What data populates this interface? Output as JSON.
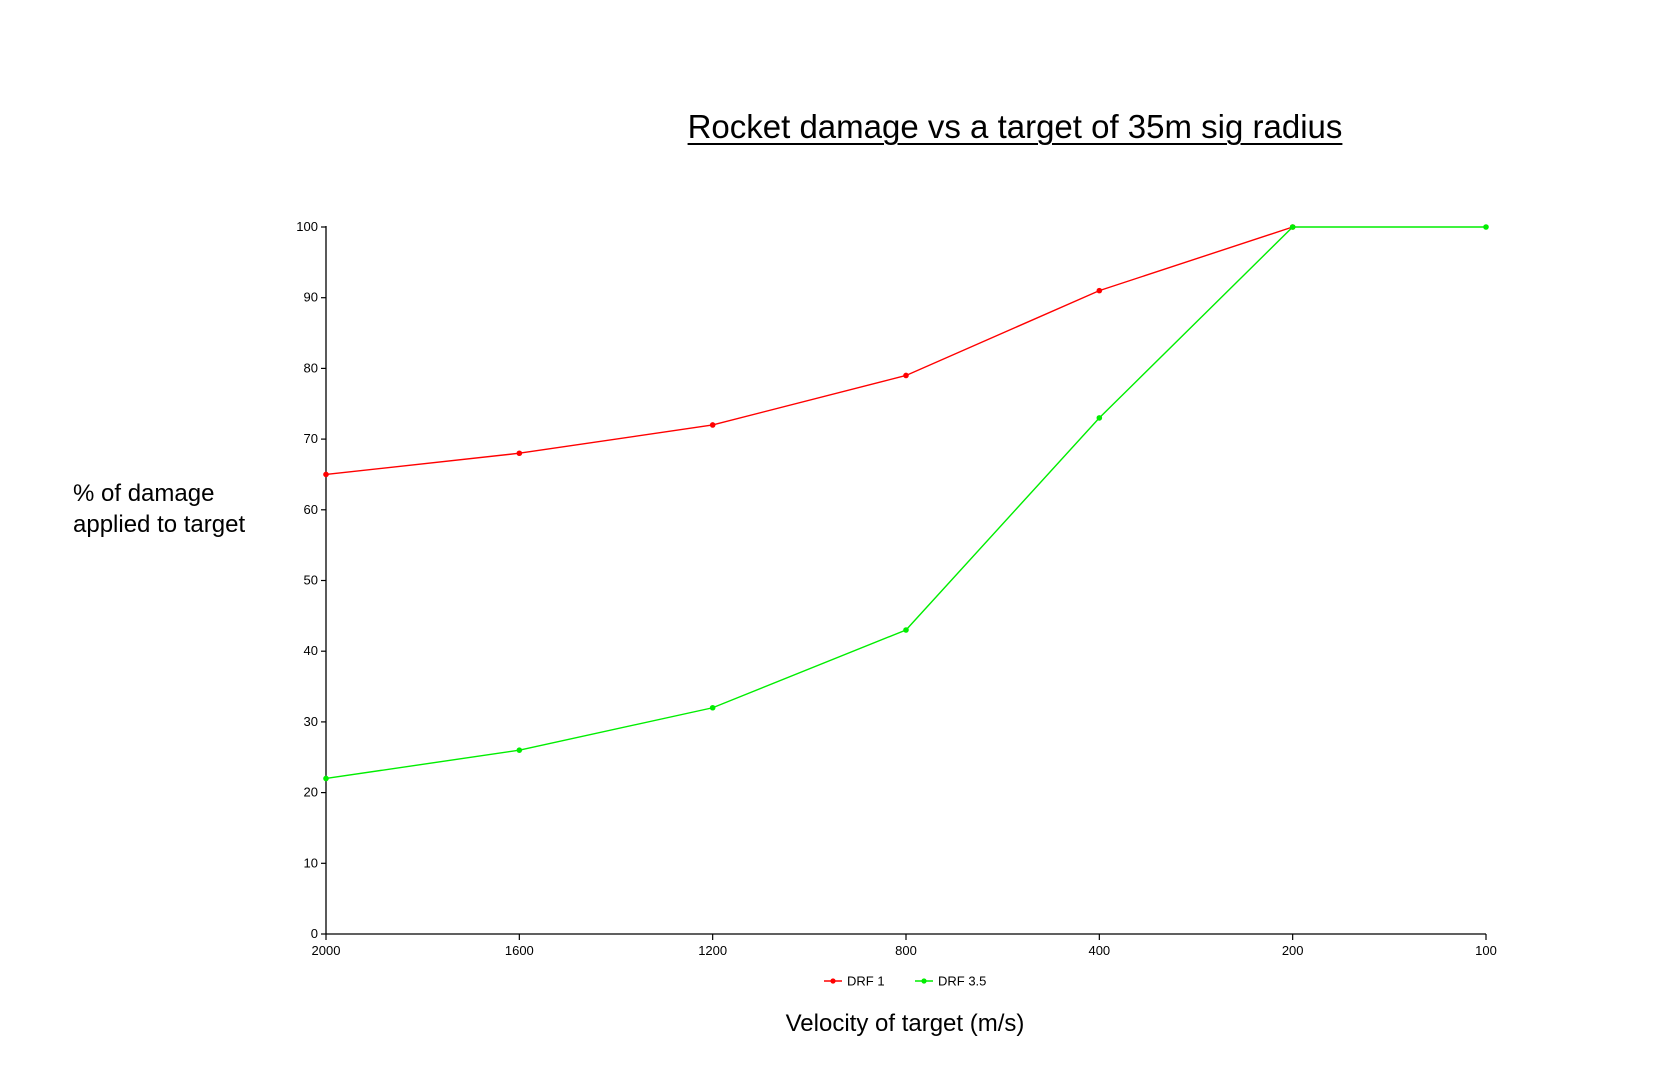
{
  "chart_data": {
    "type": "line",
    "title": "Rocket damage vs a target of 35m sig radius",
    "xlabel": "Velocity of target (m/s)",
    "ylabel_lines": [
      "% of damage",
      "applied to target"
    ],
    "categories": [
      "2000",
      "1600",
      "1200",
      "800",
      "400",
      "200",
      "100"
    ],
    "ylim": [
      0,
      100
    ],
    "yticks": [
      "0",
      "10",
      "20",
      "30",
      "40",
      "50",
      "60",
      "70",
      "80",
      "90",
      "100"
    ],
    "grid": false,
    "legend_position": "bottom",
    "series": [
      {
        "name": "DRF 1",
        "color": "#ff0000",
        "values": [
          65,
          68,
          72,
          79,
          91,
          100,
          null
        ]
      },
      {
        "name": "DRF 3.5",
        "color": "#00ee00",
        "values": [
          22,
          26,
          32,
          43,
          73,
          100,
          100
        ]
      }
    ]
  }
}
